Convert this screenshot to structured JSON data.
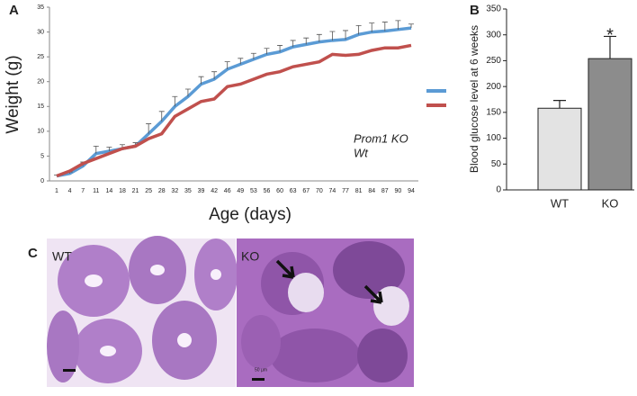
{
  "panel_labels": [
    "A",
    "B",
    "C"
  ],
  "images": {
    "left_label": "WT",
    "right_label": "KO",
    "scale_bar": "50 µm"
  },
  "chart_data": [
    {
      "type": "line",
      "x_label": "Age (days)",
      "y_label": "Weight (g)",
      "categories": [
        "1",
        "4",
        "7",
        "11",
        "14",
        "18",
        "21",
        "25",
        "28",
        "32",
        "35",
        "39",
        "42",
        "46",
        "49",
        "53",
        "56",
        "60",
        "63",
        "67",
        "70",
        "74",
        "77",
        "81",
        "84",
        "87",
        "90",
        "94"
      ],
      "series": [
        {
          "name": "Prom1 KO",
          "color": "#5b9bd5",
          "values": [
            1,
            1.5,
            3,
            5.5,
            6,
            6.5,
            7,
            9.5,
            12,
            15,
            17,
            19.5,
            20.5,
            22.5,
            23.5,
            24.5,
            25.5,
            26,
            27,
            27.5,
            28,
            28.3,
            28.5,
            29.5,
            30,
            30.2,
            30.5,
            30.8
          ],
          "errors": [
            0.2,
            0.3,
            0.8,
            1.5,
            0.8,
            0.8,
            0.7,
            2,
            2,
            2,
            1.5,
            1.5,
            1.5,
            1.5,
            1.2,
            1.2,
            1.2,
            1.3,
            1.3,
            1.3,
            1.5,
            1.8,
            1.8,
            1.8,
            1.8,
            1.8,
            1.8,
            0.8
          ]
        },
        {
          "name": "Wt",
          "color": "#c0504d",
          "values": [
            1,
            2,
            3.5,
            4.5,
            5.5,
            6.5,
            7,
            8.5,
            9.5,
            13,
            14.5,
            16,
            16.5,
            19,
            19.5,
            20.5,
            21.5,
            22,
            23,
            23.5,
            24,
            25.5,
            25.3,
            25.5,
            26.3,
            26.8,
            26.8,
            27.3
          ]
        }
      ],
      "ylim": [
        0,
        35
      ],
      "yticks": [
        0,
        5,
        10,
        15,
        20,
        25,
        30,
        35
      ]
    },
    {
      "type": "bar",
      "y_label": "Blood glucose level at 6 weeks",
      "annotation": "*",
      "categories": [
        "WT",
        "KO"
      ],
      "values": [
        158,
        254
      ],
      "errors": [
        15,
        43
      ],
      "colors": [
        "#e3e3e3",
        "#8c8c8c"
      ],
      "ylim": [
        0,
        350
      ],
      "yticks": [
        0,
        50,
        100,
        150,
        200,
        250,
        300,
        350
      ]
    }
  ]
}
